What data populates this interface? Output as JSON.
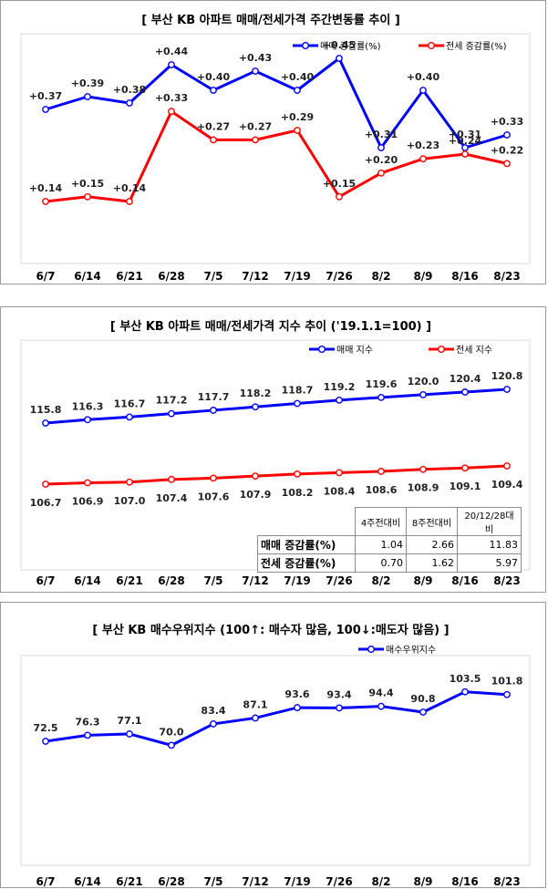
{
  "colors": {
    "sale": "#0000ff",
    "jeonse": "#ff0000",
    "plot_border": "#d9d9d9",
    "plot_bg": "#ffffff"
  },
  "dates": [
    "6/7",
    "6/14",
    "6/21",
    "6/28",
    "7/5",
    "7/12",
    "7/19",
    "7/26",
    "8/2",
    "8/9",
    "8/16",
    "8/23"
  ],
  "chart_data": [
    {
      "type": "line",
      "title": "[ 부산 KB 아파트 매매/전세가격 주간변동률 추이 ]",
      "categories": [
        "6/7",
        "6/14",
        "6/21",
        "6/28",
        "7/5",
        "7/12",
        "7/19",
        "7/26",
        "8/2",
        "8/9",
        "8/16",
        "8/23"
      ],
      "series": [
        {
          "name": "매매 증감률(%)",
          "color": "#0000ff",
          "values": [
            0.37,
            0.39,
            0.38,
            0.44,
            0.4,
            0.43,
            0.4,
            0.45,
            0.31,
            0.4,
            0.31,
            0.33
          ],
          "labels": [
            "+0.37",
            "+0.39",
            "+0.38",
            "+0.44",
            "+0.40",
            "+0.43",
            "+0.40",
            "+0.45",
            "+0.31",
            "+0.40",
            "+0.31",
            "+0.33"
          ]
        },
        {
          "name": "전세 증감률(%)",
          "color": "#ff0000",
          "values": [
            0.14,
            0.15,
            0.14,
            0.33,
            0.27,
            0.27,
            0.29,
            0.15,
            0.2,
            0.23,
            0.24,
            0.22
          ],
          "labels": [
            "+0.14",
            "+0.15",
            "+0.14",
            "+0.33",
            "+0.27",
            "+0.27",
            "+0.29",
            "+0.15",
            "+0.20",
            "+0.23",
            "+0.24",
            "+0.22"
          ]
        }
      ],
      "legend": "top-right",
      "grid": false
    },
    {
      "type": "line",
      "title": "[ 부산 KB 아파트 매매/전세가격 지수 추이 ('19.1.1=100) ]",
      "categories": [
        "6/7",
        "6/14",
        "6/21",
        "6/28",
        "7/5",
        "7/12",
        "7/19",
        "7/26",
        "8/2",
        "8/9",
        "8/16",
        "8/23"
      ],
      "series": [
        {
          "name": "매매 지수",
          "color": "#0000ff",
          "values": [
            115.8,
            116.3,
            116.7,
            117.2,
            117.7,
            118.2,
            118.7,
            119.2,
            119.6,
            120.0,
            120.4,
            120.8
          ],
          "labels": [
            "115.8",
            "116.3",
            "116.7",
            "117.2",
            "117.7",
            "118.2",
            "118.7",
            "119.2",
            "119.6",
            "120.0",
            "120.4",
            "120.8"
          ]
        },
        {
          "name": "전세 지수",
          "color": "#ff0000",
          "values": [
            106.7,
            106.9,
            107.0,
            107.4,
            107.6,
            107.9,
            108.2,
            108.4,
            108.6,
            108.9,
            109.1,
            109.4
          ],
          "labels": [
            "106.7",
            "106.9",
            "107.0",
            "107.4",
            "107.6",
            "107.9",
            "108.2",
            "108.4",
            "108.6",
            "108.9",
            "109.1",
            "109.4"
          ]
        }
      ],
      "legend": "top-right",
      "grid": false,
      "table": {
        "columns": [
          "4주전대비",
          "8주전대비",
          "20/12/28대비"
        ],
        "rows": [
          {
            "label": "매매 증감률(%)",
            "values": [
              "1.04",
              "2.66",
              "11.83"
            ]
          },
          {
            "label": "전세 증감률(%)",
            "values": [
              "0.70",
              "1.62",
              "5.97"
            ]
          }
        ]
      }
    },
    {
      "type": "line",
      "title": "[ 부산 KB 매수우위지수 (100↑: 매수자 많음, 100↓:매도자 많음) ]",
      "categories": [
        "6/7",
        "6/14",
        "6/21",
        "6/28",
        "7/5",
        "7/12",
        "7/19",
        "7/26",
        "8/2",
        "8/9",
        "8/16",
        "8/23"
      ],
      "series": [
        {
          "name": "매수우위지수",
          "color": "#0000ff",
          "values": [
            72.5,
            76.3,
            77.1,
            70.0,
            83.4,
            87.1,
            93.6,
            93.4,
            94.4,
            90.8,
            103.5,
            101.8
          ],
          "labels": [
            "72.5",
            "76.3",
            "77.1",
            "70.0",
            "83.4",
            "87.1",
            "93.6",
            "93.4",
            "94.4",
            "90.8",
            "103.5",
            "101.8"
          ]
        }
      ],
      "legend": "top-right",
      "grid": false
    }
  ]
}
